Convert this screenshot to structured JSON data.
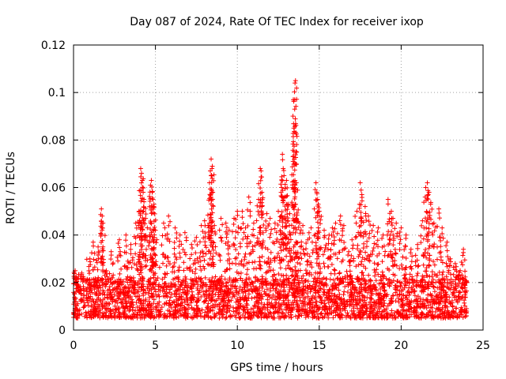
{
  "chart_data": {
    "type": "scatter",
    "title": "Day 087 of 2024, Rate Of TEC Index for receiver ixop",
    "xlabel": "GPS time / hours",
    "ylabel": "ROTI / TECUs",
    "xlim": [
      0,
      25
    ],
    "ylim": [
      0,
      0.12
    ],
    "xticks": [
      0,
      5,
      10,
      15,
      20,
      25
    ],
    "xtick_labels": [
      "0",
      "5",
      "10",
      "15",
      "20",
      "25"
    ],
    "yticks": [
      0,
      0.02,
      0.04,
      0.06,
      0.08,
      0.1,
      0.12
    ],
    "ytick_labels": [
      "0",
      "0.02",
      "0.04",
      "0.06",
      "0.08",
      "0.1",
      "0.12"
    ],
    "grid": true,
    "marker": "plus",
    "color": "#ff0000",
    "series": [
      {
        "name": "ROTI",
        "points": [
          [
            0.1,
            0.025
          ],
          [
            0.2,
            0.022
          ],
          [
            0.3,
            0.018
          ],
          [
            0.5,
            0.024
          ],
          [
            1.0,
            0.03
          ],
          [
            1.2,
            0.037
          ],
          [
            1.5,
            0.035
          ],
          [
            1.7,
            0.051
          ],
          [
            1.75,
            0.048
          ],
          [
            1.8,
            0.045
          ],
          [
            2.0,
            0.025
          ],
          [
            2.3,
            0.033
          ],
          [
            2.8,
            0.038
          ],
          [
            3.2,
            0.04
          ],
          [
            3.5,
            0.036
          ],
          [
            3.8,
            0.045
          ],
          [
            4.0,
            0.05
          ],
          [
            4.1,
            0.068
          ],
          [
            4.15,
            0.066
          ],
          [
            4.2,
            0.063
          ],
          [
            4.25,
            0.058
          ],
          [
            4.3,
            0.054
          ],
          [
            4.4,
            0.047
          ],
          [
            4.7,
            0.061
          ],
          [
            4.75,
            0.063
          ],
          [
            4.8,
            0.058
          ],
          [
            4.85,
            0.055
          ],
          [
            4.9,
            0.052
          ],
          [
            5.0,
            0.042
          ],
          [
            5.5,
            0.045
          ],
          [
            5.8,
            0.048
          ],
          [
            6.2,
            0.043
          ],
          [
            6.5,
            0.04
          ],
          [
            6.8,
            0.041
          ],
          [
            7.2,
            0.036
          ],
          [
            7.5,
            0.039
          ],
          [
            7.8,
            0.044
          ],
          [
            8.0,
            0.046
          ],
          [
            8.3,
            0.062
          ],
          [
            8.35,
            0.067
          ],
          [
            8.4,
            0.072
          ],
          [
            8.45,
            0.068
          ],
          [
            8.5,
            0.058
          ],
          [
            8.6,
            0.044
          ],
          [
            9.0,
            0.047
          ],
          [
            9.3,
            0.045
          ],
          [
            9.5,
            0.042
          ],
          [
            9.8,
            0.047
          ],
          [
            10.0,
            0.05
          ],
          [
            10.3,
            0.05
          ],
          [
            10.5,
            0.043
          ],
          [
            10.7,
            0.056
          ],
          [
            11.0,
            0.045
          ],
          [
            11.3,
            0.055
          ],
          [
            11.4,
            0.068
          ],
          [
            11.45,
            0.067
          ],
          [
            11.5,
            0.058
          ],
          [
            11.8,
            0.049
          ],
          [
            12.0,
            0.047
          ],
          [
            12.3,
            0.045
          ],
          [
            12.5,
            0.05
          ],
          [
            12.7,
            0.06
          ],
          [
            12.75,
            0.074
          ],
          [
            12.8,
            0.068
          ],
          [
            12.85,
            0.065
          ],
          [
            12.9,
            0.056
          ],
          [
            13.0,
            0.063
          ],
          [
            13.1,
            0.053
          ],
          [
            13.2,
            0.049
          ],
          [
            13.4,
            0.073
          ],
          [
            13.45,
            0.085
          ],
          [
            13.5,
            0.093
          ],
          [
            13.52,
            0.104
          ],
          [
            13.55,
            0.105
          ],
          [
            13.6,
            0.062
          ],
          [
            13.8,
            0.045
          ],
          [
            14.0,
            0.044
          ],
          [
            14.3,
            0.038
          ],
          [
            14.5,
            0.043
          ],
          [
            14.8,
            0.062
          ],
          [
            14.85,
            0.058
          ],
          [
            14.9,
            0.055
          ],
          [
            15.0,
            0.05
          ],
          [
            15.3,
            0.042
          ],
          [
            15.6,
            0.04
          ],
          [
            15.8,
            0.043
          ],
          [
            16.0,
            0.045
          ],
          [
            16.3,
            0.048
          ],
          [
            16.5,
            0.044
          ],
          [
            16.8,
            0.033
          ],
          [
            17.0,
            0.038
          ],
          [
            17.3,
            0.05
          ],
          [
            17.5,
            0.062
          ],
          [
            17.6,
            0.057
          ],
          [
            17.8,
            0.052
          ],
          [
            18.0,
            0.048
          ],
          [
            18.3,
            0.044
          ],
          [
            18.6,
            0.043
          ],
          [
            18.9,
            0.04
          ],
          [
            19.2,
            0.055
          ],
          [
            19.4,
            0.05
          ],
          [
            19.5,
            0.047
          ],
          [
            19.7,
            0.045
          ],
          [
            20.0,
            0.043
          ],
          [
            20.3,
            0.04
          ],
          [
            20.6,
            0.034
          ],
          [
            21.0,
            0.036
          ],
          [
            21.3,
            0.046
          ],
          [
            21.5,
            0.06
          ],
          [
            21.6,
            0.062
          ],
          [
            21.7,
            0.058
          ],
          [
            21.8,
            0.053
          ],
          [
            22.0,
            0.045
          ],
          [
            22.3,
            0.051
          ],
          [
            22.5,
            0.043
          ],
          [
            22.8,
            0.037
          ],
          [
            23.0,
            0.03
          ],
          [
            23.3,
            0.028
          ],
          [
            23.6,
            0.025
          ],
          [
            23.8,
            0.034
          ],
          [
            24.0,
            0.02
          ]
        ]
      }
    ],
    "dense_band": {
      "x_range": [
        0,
        24
      ],
      "y_low": 0.005,
      "y_high": 0.022,
      "approx_points": 2600
    }
  }
}
